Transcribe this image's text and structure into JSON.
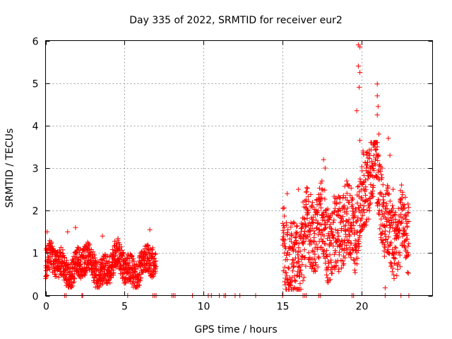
{
  "chart_data": {
    "type": "scatter",
    "title": "Day 335 of 2022, SRMTID for receiver eur2",
    "xlabel": "GPS time / hours",
    "ylabel": "SRMTID / TECUs",
    "xlim": [
      0,
      24.5
    ],
    "ylim": [
      0,
      6
    ],
    "xticks": [
      0,
      5,
      10,
      15,
      20
    ],
    "xtick_labels": [
      "0",
      "5",
      "10",
      "15",
      "20"
    ],
    "yticks": [
      0,
      1,
      2,
      3,
      4,
      5,
      6
    ],
    "ytick_labels": [
      "0",
      "1",
      "2",
      "3",
      "4",
      "5",
      "6"
    ],
    "grid": true,
    "marker": "+",
    "color": "#ff0000",
    "series": [
      {
        "name": "eur2",
        "segments": [
          {
            "x_start": 0.0,
            "x_end": 7.0,
            "y_min": 0.2,
            "y_mean": 0.7,
            "y_max": 1.6,
            "step": 0.008
          },
          {
            "x_start": 15.0,
            "x_end": 23.0,
            "y_min": 0.15,
            "y_mean": 1.1,
            "y_max": 5.9,
            "step": 0.008
          }
        ],
        "highlights": [
          {
            "x": 0.1,
            "y": 1.5
          },
          {
            "x": 1.4,
            "y": 1.5
          },
          {
            "x": 1.9,
            "y": 1.6
          },
          {
            "x": 3.6,
            "y": 1.4
          },
          {
            "x": 6.6,
            "y": 1.55
          },
          {
            "x": 15.3,
            "y": 2.4
          },
          {
            "x": 16.0,
            "y": 2.5
          },
          {
            "x": 16.3,
            "y": 2.2
          },
          {
            "x": 17.5,
            "y": 2.5
          },
          {
            "x": 17.6,
            "y": 3.2
          },
          {
            "x": 17.7,
            "y": 3.0
          },
          {
            "x": 18.5,
            "y": 2.0
          },
          {
            "x": 19.8,
            "y": 5.9
          },
          {
            "x": 19.9,
            "y": 5.85
          },
          {
            "x": 19.8,
            "y": 5.4
          },
          {
            "x": 19.9,
            "y": 5.25
          },
          {
            "x": 19.85,
            "y": 4.9
          },
          {
            "x": 19.7,
            "y": 4.35
          },
          {
            "x": 19.9,
            "y": 3.65
          },
          {
            "x": 20.1,
            "y": 3.4
          },
          {
            "x": 20.3,
            "y": 3.0
          },
          {
            "x": 21.0,
            "y": 4.98
          },
          {
            "x": 21.0,
            "y": 4.7
          },
          {
            "x": 21.05,
            "y": 4.45
          },
          {
            "x": 21.0,
            "y": 4.25
          },
          {
            "x": 21.1,
            "y": 3.8
          },
          {
            "x": 21.7,
            "y": 3.7
          },
          {
            "x": 21.8,
            "y": 3.3
          },
          {
            "x": 21.0,
            "y": 3.5
          },
          {
            "x": 21.3,
            "y": 3.0
          },
          {
            "x": 22.0,
            "y": 2.5
          },
          {
            "x": 21.5,
            "y": 0.18
          }
        ],
        "zero_points_x": [
          1.2,
          1.3,
          2.3,
          2.35,
          5.2,
          6.8,
          6.9,
          7.0,
          8.0,
          8.1,
          8.2,
          9.3,
          10.3,
          10.5,
          11.0,
          11.3,
          11.4,
          12.0,
          12.3,
          13.3,
          15.0,
          16.3,
          16.4,
          16.5,
          17.3,
          17.4,
          19.4,
          19.5,
          21.5,
          22.5,
          23.0
        ]
      }
    ]
  }
}
